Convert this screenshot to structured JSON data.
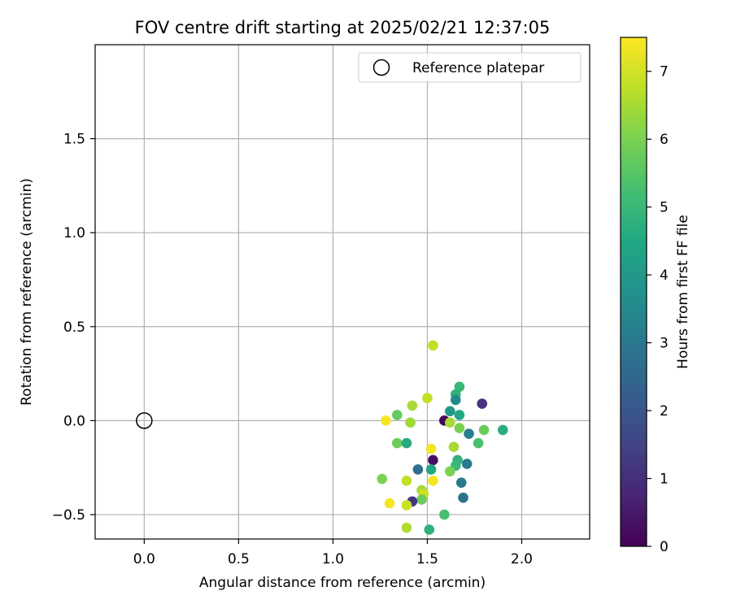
{
  "chart_data": {
    "type": "scatter",
    "title": "FOV centre drift starting at 2025/02/21 12:37:05",
    "xlabel": "Angular distance from reference (arcmin)",
    "ylabel": "Rotation from reference (arcmin)",
    "xlim": [
      -0.26,
      2.36
    ],
    "ylim": [
      -0.63,
      2.0
    ],
    "xticks": [
      0.0,
      0.5,
      1.0,
      1.5,
      2.0
    ],
    "xtick_labels": [
      "0.0",
      "0.5",
      "1.0",
      "1.5",
      "2.0"
    ],
    "yticks": [
      -0.5,
      0.0,
      0.5,
      1.0,
      1.5
    ],
    "ytick_labels": [
      "−0.5",
      "0.0",
      "0.5",
      "1.0",
      "1.5"
    ],
    "grid": true,
    "legend": {
      "position": "top-right",
      "entries": [
        {
          "label": "Reference platepar",
          "marker": "hollow-circle",
          "color": "#000000"
        }
      ]
    },
    "reference_point": {
      "x": 0.0,
      "y": 0.0
    },
    "colorbar": {
      "label": "Hours from first FF file",
      "min": 0,
      "max": 7.5,
      "ticks": [
        0,
        1,
        2,
        3,
        4,
        5,
        6,
        7
      ],
      "tick_labels": [
        "0",
        "1",
        "2",
        "3",
        "4",
        "5",
        "6",
        "7"
      ],
      "colormap": "viridis"
    },
    "points": [
      {
        "x": 1.53,
        "y": 0.4,
        "h": 6.8
      },
      {
        "x": 1.67,
        "y": 0.18,
        "h": 5.0
      },
      {
        "x": 1.65,
        "y": 0.14,
        "h": 4.8
      },
      {
        "x": 1.65,
        "y": 0.11,
        "h": 3.5
      },
      {
        "x": 1.79,
        "y": 0.09,
        "h": 1.1
      },
      {
        "x": 1.5,
        "y": 0.12,
        "h": 6.8
      },
      {
        "x": 1.42,
        "y": 0.08,
        "h": 6.5
      },
      {
        "x": 1.62,
        "y": 0.05,
        "h": 4.0
      },
      {
        "x": 1.67,
        "y": 0.03,
        "h": 4.5
      },
      {
        "x": 1.34,
        "y": 0.03,
        "h": 5.7
      },
      {
        "x": 1.28,
        "y": 0.0,
        "h": 7.4
      },
      {
        "x": 1.59,
        "y": 0.0,
        "h": 0.1
      },
      {
        "x": 1.41,
        "y": -0.01,
        "h": 6.4
      },
      {
        "x": 1.62,
        "y": -0.01,
        "h": 6.5
      },
      {
        "x": 1.67,
        "y": -0.04,
        "h": 6.0
      },
      {
        "x": 1.8,
        "y": -0.05,
        "h": 5.8
      },
      {
        "x": 1.9,
        "y": -0.05,
        "h": 4.7
      },
      {
        "x": 1.72,
        "y": -0.07,
        "h": 3.2
      },
      {
        "x": 1.34,
        "y": -0.12,
        "h": 5.8
      },
      {
        "x": 1.39,
        "y": -0.12,
        "h": 4.6
      },
      {
        "x": 1.77,
        "y": -0.12,
        "h": 5.3
      },
      {
        "x": 1.52,
        "y": -0.15,
        "h": 7.4
      },
      {
        "x": 1.64,
        "y": -0.14,
        "h": 6.5
      },
      {
        "x": 1.53,
        "y": -0.21,
        "h": 0.3
      },
      {
        "x": 1.66,
        "y": -0.21,
        "h": 4.8
      },
      {
        "x": 1.65,
        "y": -0.24,
        "h": 5.0
      },
      {
        "x": 1.71,
        "y": -0.23,
        "h": 3.0
      },
      {
        "x": 1.45,
        "y": -0.26,
        "h": 2.7
      },
      {
        "x": 1.52,
        "y": -0.26,
        "h": 4.5
      },
      {
        "x": 1.62,
        "y": -0.27,
        "h": 6.0
      },
      {
        "x": 1.26,
        "y": -0.31,
        "h": 6.0
      },
      {
        "x": 1.39,
        "y": -0.32,
        "h": 6.8
      },
      {
        "x": 1.53,
        "y": -0.32,
        "h": 7.4
      },
      {
        "x": 1.68,
        "y": -0.33,
        "h": 3.1
      },
      {
        "x": 1.47,
        "y": -0.37,
        "h": 6.5
      },
      {
        "x": 1.48,
        "y": -0.39,
        "h": 6.9
      },
      {
        "x": 1.47,
        "y": -0.42,
        "h": 5.8
      },
      {
        "x": 1.42,
        "y": -0.43,
        "h": 1.2
      },
      {
        "x": 1.3,
        "y": -0.44,
        "h": 7.4
      },
      {
        "x": 1.39,
        "y": -0.45,
        "h": 6.9
      },
      {
        "x": 1.69,
        "y": -0.41,
        "h": 2.8
      },
      {
        "x": 1.59,
        "y": -0.5,
        "h": 5.3
      },
      {
        "x": 1.39,
        "y": -0.57,
        "h": 6.6
      },
      {
        "x": 1.51,
        "y": -0.58,
        "h": 4.8
      }
    ]
  }
}
